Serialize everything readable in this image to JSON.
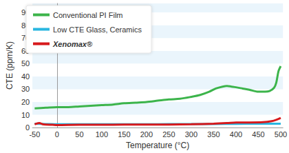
{
  "chart_data": {
    "type": "line",
    "x_label": "Temperature (°C)",
    "y_label": "CTE (ppm/K)",
    "xlim": [
      -55,
      505
    ],
    "xticks": [
      -50,
      0,
      50,
      100,
      150,
      200,
      250,
      300,
      350,
      400,
      450,
      500
    ],
    "ylim": [
      0,
      97
    ],
    "yticks": [
      0,
      10,
      20,
      30,
      40,
      50,
      60,
      70,
      80,
      90
    ],
    "grid": true,
    "legend": "upper left",
    "series": [
      {
        "name": "Conventional PI Film",
        "color": "#3cb44b",
        "x": [
          -50,
          -25,
          0,
          25,
          50,
          75,
          100,
          125,
          150,
          175,
          200,
          225,
          250,
          275,
          300,
          320,
          340,
          355,
          370,
          380,
          390,
          400,
          415,
          430,
          450,
          465,
          475,
          485,
          490,
          495,
          500
        ],
        "values": [
          15,
          15.5,
          16,
          16,
          16.5,
          17,
          17.5,
          18,
          19,
          19.5,
          20,
          21,
          22,
          22.5,
          24,
          25.5,
          28,
          30.5,
          32,
          32.5,
          32,
          31.5,
          30.5,
          29.5,
          28,
          28,
          28.5,
          31,
          35,
          44,
          48
        ]
      },
      {
        "name": "Low CTE Glass, Ceramics",
        "color": "#29b6e0",
        "x": [
          -50,
          -25,
          0,
          50,
          100,
          150,
          200,
          250,
          300,
          350,
          400,
          450,
          500
        ],
        "values": [
          3,
          2.8,
          2.6,
          2.6,
          2.6,
          2.6,
          2.6,
          2.7,
          2.8,
          2.8,
          2.9,
          3,
          3
        ]
      },
      {
        "name": "Xenomax®",
        "color": "#d7191c",
        "x": [
          -50,
          -40,
          -30,
          -10,
          0,
          50,
          100,
          150,
          200,
          250,
          300,
          350,
          380,
          400,
          430,
          460,
          480,
          490,
          500
        ],
        "values": [
          2.5,
          3.5,
          2.5,
          2.2,
          2,
          2.2,
          2.2,
          2.3,
          2.3,
          2.4,
          2.6,
          3,
          3.5,
          4,
          4,
          4.2,
          5,
          6,
          7.5
        ]
      }
    ]
  }
}
